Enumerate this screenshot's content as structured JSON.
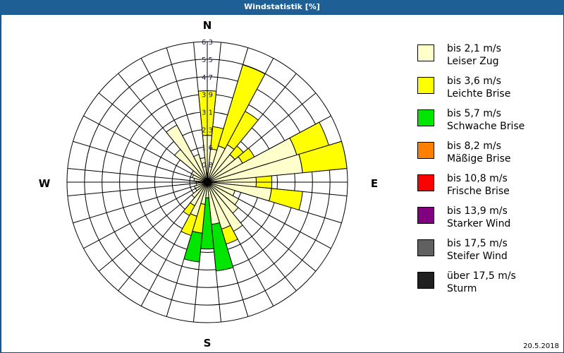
{
  "window": {
    "title": "Windstatistik [%]",
    "date": "20.5.2018"
  },
  "compass": {
    "n": "N",
    "e": "E",
    "s": "S",
    "w": "W"
  },
  "legend": [
    {
      "line1": "bis 2,1 m/s",
      "line2": "Leiser Zug",
      "color": "#ffffcc"
    },
    {
      "line1": "bis 3,6 m/s",
      "line2": "Leichte Brise",
      "color": "#ffff00"
    },
    {
      "line1": "bis 5,7 m/s",
      "line2": "Schwache Brise",
      "color": "#00e600"
    },
    {
      "line1": "bis 8,2 m/s",
      "line2": "Mäßige Brise",
      "color": "#ff8000"
    },
    {
      "line1": "bis 10,8 m/s",
      "line2": "Frische Brise",
      "color": "#ff0000"
    },
    {
      "line1": "bis 13,9 m/s",
      "line2": "Starker Wind",
      "color": "#800080"
    },
    {
      "line1": "bis 17,5 m/s",
      "line2": "Steifer Wind",
      "color": "#606060"
    },
    {
      "line1": "über 17,5 m/s",
      "line2": "Sturm",
      "color": "#202020"
    }
  ],
  "chart_data": {
    "type": "polar-bar (wind rose)",
    "title": "Windstatistik [%]",
    "radial_ticks": [
      "0,8",
      "1,6",
      "2,3",
      "3,1",
      "3,9",
      "4,7",
      "5,5",
      "6,3"
    ],
    "radial_max": 6.3,
    "sector_count": 32,
    "sector_width_deg": 11.25,
    "series_names": [
      "bis 2,1 m/s",
      "bis 3,6 m/s",
      "bis 5,7 m/s",
      "bis 8,2 m/s",
      "bis 10,8 m/s",
      "bis 13,9 m/s",
      "bis 17,5 m/s",
      "über 17,5 m/s"
    ],
    "sectors": [
      {
        "deg": 0,
        "values": [
          2.1,
          2.0,
          0
        ]
      },
      {
        "deg": 11.25,
        "values": [
          1.5,
          1.0,
          0
        ]
      },
      {
        "deg": 22.5,
        "values": [
          1.7,
          3.8,
          0
        ]
      },
      {
        "deg": 33.75,
        "values": [
          1.9,
          1.7,
          0
        ]
      },
      {
        "deg": 45,
        "values": [
          1.6,
          0.5,
          0
        ]
      },
      {
        "deg": 56.25,
        "values": [
          1.8,
          0.6,
          0
        ]
      },
      {
        "deg": 67.5,
        "values": [
          4.2,
          1.5,
          0
        ]
      },
      {
        "deg": 78.75,
        "values": [
          4.3,
          2.0,
          0
        ]
      },
      {
        "deg": 90,
        "values": [
          2.2,
          0.7,
          0
        ]
      },
      {
        "deg": 101.25,
        "values": [
          2.9,
          1.4,
          0
        ]
      },
      {
        "deg": 112.5,
        "values": [
          1.3,
          0,
          0
        ]
      },
      {
        "deg": 123.75,
        "values": [
          1.6,
          0,
          0
        ]
      },
      {
        "deg": 135,
        "values": [
          1.8,
          0,
          0
        ]
      },
      {
        "deg": 146.25,
        "values": [
          2.5,
          0,
          0
        ]
      },
      {
        "deg": 157.5,
        "values": [
          2.2,
          0.7,
          0
        ]
      },
      {
        "deg": 168.75,
        "values": [
          1.9,
          0,
          2.1
        ]
      },
      {
        "deg": 180,
        "values": [
          0.7,
          0,
          2.3
        ]
      },
      {
        "deg": 191.25,
        "values": [
          1.0,
          1.3,
          1.3
        ]
      },
      {
        "deg": 202.5,
        "values": [
          1.6,
          0.9,
          0
        ]
      },
      {
        "deg": 213.75,
        "values": [
          1.2,
          0.5,
          0
        ]
      },
      {
        "deg": 225,
        "values": [
          0.9,
          0,
          0
        ]
      },
      {
        "deg": 236.25,
        "values": [
          0.6,
          0,
          0
        ]
      },
      {
        "deg": 247.5,
        "values": [
          0.6,
          0,
          0
        ]
      },
      {
        "deg": 258.75,
        "values": [
          0.5,
          0,
          0
        ]
      },
      {
        "deg": 270,
        "values": [
          0.5,
          0,
          0
        ]
      },
      {
        "deg": 281.25,
        "values": [
          0.6,
          0,
          0
        ]
      },
      {
        "deg": 292.5,
        "values": [
          0.7,
          0,
          0
        ]
      },
      {
        "deg": 303.75,
        "values": [
          0.8,
          0,
          0
        ]
      },
      {
        "deg": 315,
        "values": [
          1.9,
          0,
          0
        ]
      },
      {
        "deg": 326.25,
        "values": [
          2.9,
          0,
          0
        ]
      },
      {
        "deg": 337.5,
        "values": [
          1.3,
          0,
          0
        ]
      },
      {
        "deg": 348.75,
        "values": [
          1.1,
          0,
          0
        ]
      }
    ]
  }
}
